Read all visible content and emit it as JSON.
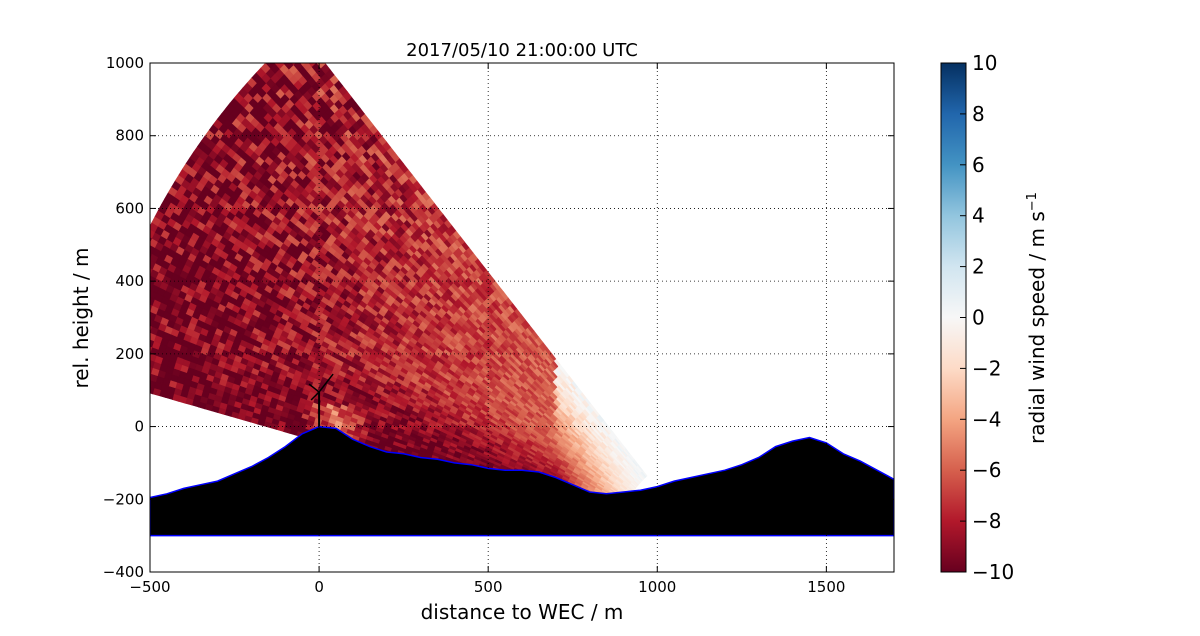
{
  "chart_data": {
    "type": "heatmap",
    "title": "2017/05/10 21:00:00 UTC",
    "xlabel": "distance to WEC / m",
    "ylabel": "rel. height / m",
    "xlim": [
      -500,
      1700
    ],
    "ylim": [
      -400,
      1000
    ],
    "xticks": [
      -500,
      0,
      500,
      1000,
      1500
    ],
    "yticks": [
      -400,
      -200,
      0,
      200,
      400,
      600,
      800,
      1000
    ],
    "grid": true,
    "scan_origin_xy": [
      1150,
      -350
    ],
    "scan_range_max_m": 1880,
    "scan_range_min_m": 280,
    "scan_elevation_deg": [
      15,
      50
    ],
    "colorbar": {
      "label": "radial wind speed / m s",
      "label_superscript": "−1",
      "range": [
        -10,
        10
      ],
      "ticks": [
        -10,
        -8,
        -6,
        -4,
        -2,
        0,
        2,
        4,
        6,
        8,
        10
      ],
      "colormap": "RdBu",
      "colors": [
        "#67001f",
        "#b2182b",
        "#d6604d",
        "#f4a582",
        "#fddbc7",
        "#f7f7f7",
        "#d1e5f0",
        "#92c5de",
        "#4393c3",
        "#2166ac",
        "#053061"
      ]
    },
    "terrain_profile": {
      "x": [
        -500,
        -450,
        -400,
        -350,
        -300,
        -250,
        -200,
        -150,
        -100,
        -50,
        0,
        50,
        100,
        150,
        200,
        250,
        300,
        350,
        400,
        450,
        500,
        550,
        600,
        650,
        700,
        750,
        800,
        850,
        900,
        950,
        1000,
        1050,
        1100,
        1150,
        1200,
        1250,
        1300,
        1350,
        1400,
        1450,
        1500,
        1550,
        1600,
        1650,
        1700
      ],
      "y": [
        -195,
        -185,
        -170,
        -160,
        -150,
        -130,
        -110,
        -85,
        -55,
        -20,
        0,
        -5,
        -35,
        -55,
        -70,
        -75,
        -85,
        -90,
        -100,
        -105,
        -115,
        -120,
        -120,
        -125,
        -140,
        -160,
        -180,
        -185,
        -180,
        -175,
        -165,
        -150,
        -140,
        -130,
        -120,
        -105,
        -85,
        -55,
        -40,
        -30,
        -45,
        -75,
        -95,
        -120,
        -145
      ],
      "base": -300,
      "fill": "#000000",
      "edge": "#0000ff"
    },
    "turbine_marker": {
      "x": 0,
      "hub_height_m": 95
    }
  }
}
